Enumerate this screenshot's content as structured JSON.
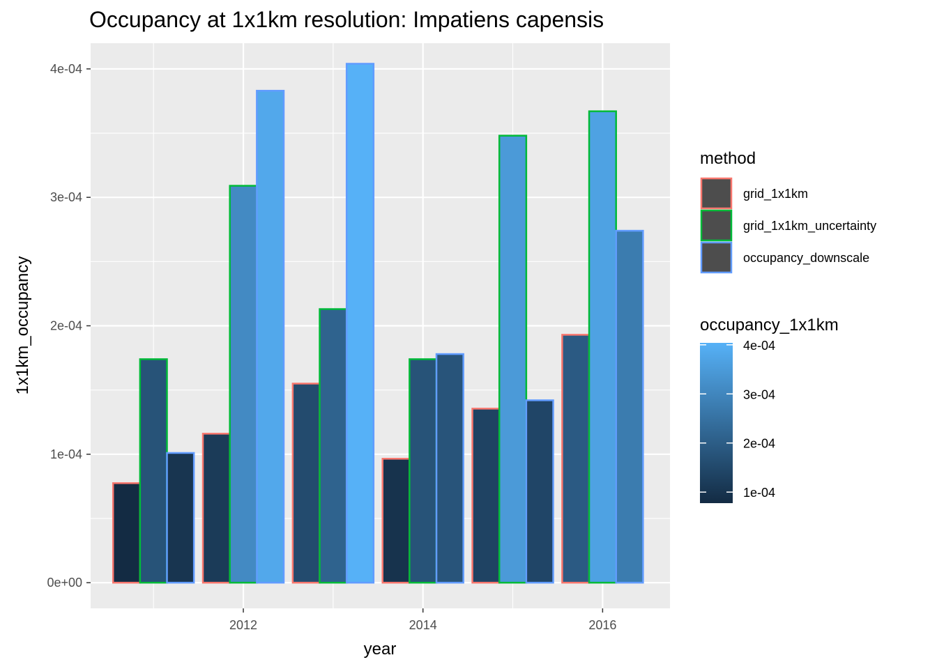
{
  "chart_data": {
    "type": "bar",
    "title": "Occupancy at 1x1km resolution: Impatiens capensis",
    "xlabel": "year",
    "ylabel": "1x1km_occupancy",
    "x_ticks": [
      "2012",
      "2014",
      "2016"
    ],
    "y_ticks": [
      "0e+00",
      "1e-04",
      "2e-04",
      "3e-04",
      "4e-04"
    ],
    "xlim": [
      2010.3,
      2016.75
    ],
    "ylim": [
      -2e-05,
      0.00042
    ],
    "categories": [
      2011,
      2012,
      2013,
      2014,
      2015,
      2016
    ],
    "series": [
      {
        "name": "grid_1x1km",
        "outline": "#F8766D",
        "values": [
          7.75e-05,
          0.000116,
          0.000155,
          9.65e-05,
          0.0001355,
          0.000193
        ]
      },
      {
        "name": "grid_1x1km_uncertainty",
        "outline": "#00BA38",
        "values": [
          0.000174,
          0.000309,
          0.000213,
          0.000174,
          0.000348,
          0.000367
        ]
      },
      {
        "name": "occupancy_downscale",
        "outline": "#619CFF",
        "values": [
          0.000101,
          0.000383,
          0.000404,
          0.000178,
          0.000142,
          0.000274
        ]
      }
    ],
    "legend": {
      "position": "right",
      "method_title": "method",
      "fill_title": "occupancy_1x1km",
      "fill_ticks": [
        "4e-04",
        "3e-04",
        "2e-04",
        "1e-04"
      ],
      "fill_low": "#132B43",
      "fill_high": "#56B1F7",
      "legend_key_fill": "#4D4D4D"
    },
    "panel_background": "#EBEBEB",
    "grid": true
  }
}
